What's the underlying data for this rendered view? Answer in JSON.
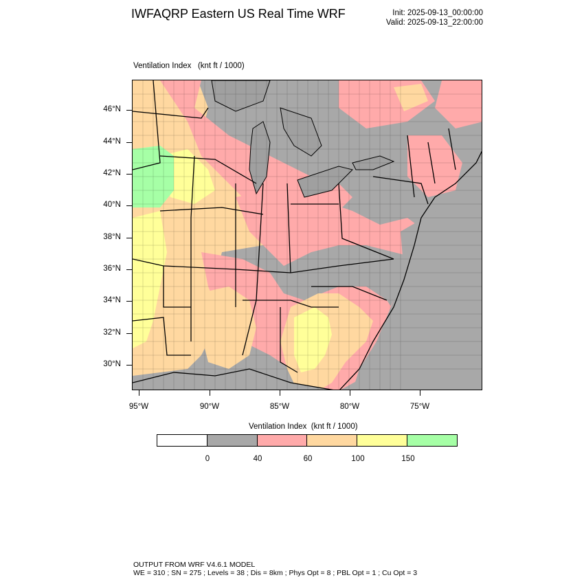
{
  "header": {
    "title": "IWFAQRP Eastern US Real Time WRF",
    "init": "Init: 2025-09-13_00:00:00",
    "valid": "Valid: 2025-09-13_22:00:00"
  },
  "map": {
    "subtitle": "Ventilation Index   (knt ft / 1000)",
    "lat_labels": [
      "46°N",
      "44°N",
      "42°N",
      "40°N",
      "38°N",
      "36°N",
      "34°N",
      "32°N",
      "30°N"
    ],
    "lon_labels": [
      "95°W",
      "90°W",
      "85°W",
      "80°W",
      "75°W"
    ],
    "colors": {
      "land_gray": "#a8a8a8",
      "pink": "#ffaaaa",
      "orange": "#ffd8a0",
      "yellow": "#ffff99",
      "green": "#a6ffa6",
      "boundaries": "#000000"
    }
  },
  "colorbar": {
    "title": "Ventilation Index  (knt ft / 1000)",
    "colors": [
      "#ffffff",
      "#a8a8a8",
      "#ffaaaa",
      "#ffd8a0",
      "#ffff99",
      "#a6ffa6"
    ],
    "labels": [
      "0",
      "40",
      "60",
      "100",
      "150"
    ]
  },
  "footer": {
    "line1": "OUTPUT FROM WRF V4.6.1 MODEL",
    "line2": "WE = 310 ; SN = 275 ; Levels = 38 ; Dis = 8km ; Phys Opt = 8 ; PBL Opt = 1 ; Cu Opt = 3"
  }
}
